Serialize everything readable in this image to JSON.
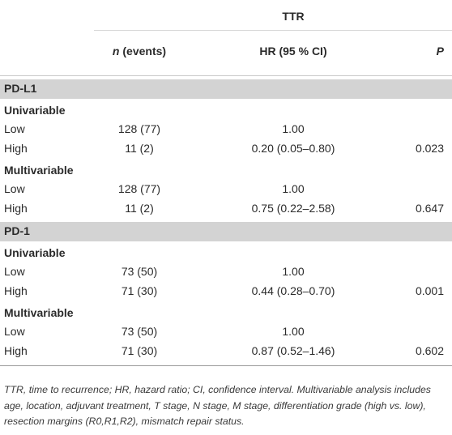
{
  "header": {
    "group_label": "TTR",
    "col_n_italic": "n",
    "col_n_rest": " (events)",
    "col_hr": "HR (95 % CI)",
    "col_p": "P"
  },
  "sections": [
    {
      "title": "PD-L1",
      "groups": [
        {
          "label": "Univariable",
          "rows": [
            {
              "label": "Low",
              "n": "128 (77)",
              "hr": "1.00",
              "p": ""
            },
            {
              "label": "High",
              "n": "11 (2)",
              "hr": "0.20 (0.05–0.80)",
              "p": "0.023"
            }
          ]
        },
        {
          "label": "Multivariable",
          "rows": [
            {
              "label": "Low",
              "n": "128 (77)",
              "hr": "1.00",
              "p": ""
            },
            {
              "label": "High",
              "n": "11 (2)",
              "hr": "0.75 (0.22–2.58)",
              "p": "0.647"
            }
          ]
        }
      ]
    },
    {
      "title": "PD-1",
      "groups": [
        {
          "label": "Univariable",
          "rows": [
            {
              "label": "Low",
              "n": "73 (50)",
              "hr": "1.00",
              "p": ""
            },
            {
              "label": "High",
              "n": "71 (30)",
              "hr": "0.44 (0.28–0.70)",
              "p": "0.001"
            }
          ]
        },
        {
          "label": "Multivariable",
          "rows": [
            {
              "label": "Low",
              "n": "73 (50)",
              "hr": "1.00",
              "p": ""
            },
            {
              "label": "High",
              "n": "71 (30)",
              "hr": "0.87 (0.52–1.46)",
              "p": "0.602"
            }
          ]
        }
      ]
    }
  ],
  "footnote": "TTR, time to recurrence; HR, hazard ratio; CI, confidence interval. Multivariable analysis includes age, location, adjuvant treatment, T stage, N stage, M stage, differentiation grade (high vs. low), resection margins (R0,R1,R2), mismatch repair status."
}
